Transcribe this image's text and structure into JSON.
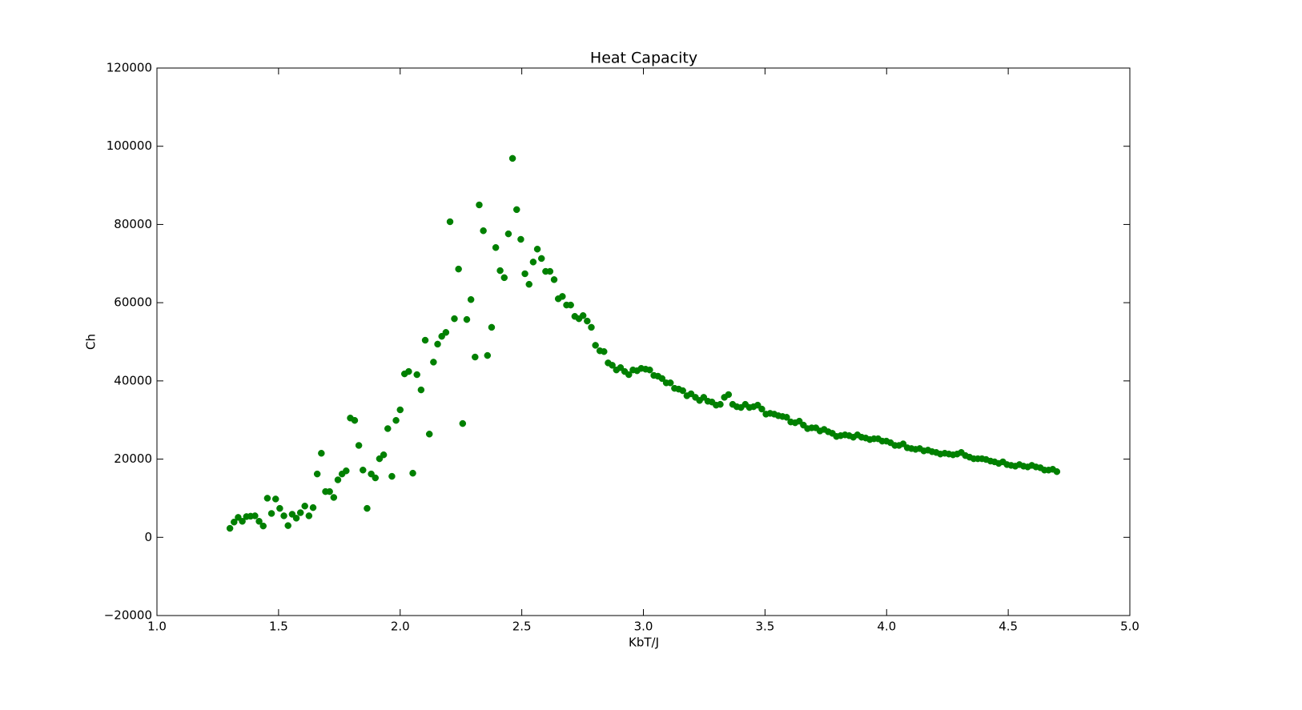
{
  "chart_data": {
    "type": "scatter",
    "title": "Heat Capacity",
    "x_label": "KbT/J",
    "y_label": "Ch",
    "color": "#008000",
    "x": [
      1.3,
      1.317,
      1.334,
      1.351,
      1.368,
      1.385,
      1.403,
      1.42,
      1.437,
      1.454,
      1.471,
      1.488,
      1.505,
      1.522,
      1.539,
      1.556,
      1.573,
      1.59,
      1.608,
      1.625,
      1.642,
      1.659,
      1.676,
      1.693,
      1.71,
      1.727,
      1.744,
      1.761,
      1.778,
      1.795,
      1.813,
      1.83,
      1.847,
      1.864,
      1.881,
      1.898,
      1.915,
      1.932,
      1.949,
      1.966,
      1.983,
      2.0,
      2.018,
      2.035,
      2.052,
      2.069,
      2.086,
      2.103,
      2.12,
      2.137,
      2.154,
      2.171,
      2.188,
      2.205,
      2.223,
      2.24,
      2.257,
      2.274,
      2.291,
      2.308,
      2.325,
      2.342,
      2.359,
      2.376,
      2.393,
      2.411,
      2.428,
      2.445,
      2.462,
      2.479,
      2.496,
      2.513,
      2.53,
      2.547,
      2.564,
      2.581,
      2.598,
      2.616,
      2.633,
      2.65,
      2.667,
      2.684,
      2.701,
      2.718,
      2.735,
      2.752,
      2.769,
      2.786,
      2.803,
      2.821,
      2.838,
      2.855,
      2.872,
      2.889,
      2.906,
      2.923,
      2.94,
      2.957,
      2.974,
      2.991,
      3.009,
      3.026,
      3.043,
      3.06,
      3.077,
      3.094,
      3.111,
      3.128,
      3.145,
      3.162,
      3.179,
      3.196,
      3.214,
      3.231,
      3.248,
      3.265,
      3.282,
      3.299,
      3.316,
      3.333,
      3.35,
      3.367,
      3.384,
      3.401,
      3.419,
      3.436,
      3.453,
      3.47,
      3.487,
      3.504,
      3.521,
      3.538,
      3.555,
      3.572,
      3.589,
      3.606,
      3.624,
      3.641,
      3.658,
      3.675,
      3.692,
      3.709,
      3.726,
      3.743,
      3.76,
      3.777,
      3.794,
      3.811,
      3.829,
      3.846,
      3.863,
      3.88,
      3.897,
      3.914,
      3.931,
      3.948,
      3.965,
      3.982,
      3.999,
      4.016,
      4.034,
      4.051,
      4.068,
      4.085,
      4.102,
      4.119,
      4.136,
      4.153,
      4.17,
      4.187,
      4.204,
      4.221,
      4.239,
      4.256,
      4.273,
      4.29,
      4.307,
      4.324,
      4.341,
      4.358,
      4.375,
      4.392,
      4.409,
      4.427,
      4.444,
      4.461,
      4.478,
      4.495,
      4.512,
      4.529,
      4.546,
      4.563,
      4.58,
      4.597,
      4.614,
      4.632,
      4.649,
      4.666,
      4.683,
      4.7
    ],
    "values": [
      2300,
      3900,
      5100,
      4100,
      5300,
      5400,
      5500,
      4100,
      2900,
      10000,
      6100,
      9800,
      7400,
      5500,
      3000,
      5900,
      4900,
      6300,
      8000,
      5500,
      7600,
      16200,
      21500,
      11700,
      11700,
      10200,
      14700,
      16200,
      17000,
      30500,
      29900,
      23500,
      17200,
      7400,
      16200,
      15200,
      20100,
      21100,
      27800,
      15600,
      29900,
      32600,
      41800,
      42400,
      16400,
      41600,
      37700,
      50400,
      26400,
      44800,
      49400,
      51400,
      52400,
      80700,
      55900,
      68600,
      29100,
      55700,
      60800,
      46100,
      85000,
      78400,
      46500,
      53700,
      74100,
      68200,
      66400,
      77600,
      96900,
      83800,
      76200,
      67400,
      64700,
      70400,
      73700,
      71300,
      68000,
      68000,
      65900,
      61000,
      61600,
      59400,
      59400,
      56500,
      55900,
      56700,
      55300,
      53700,
      49100,
      47700,
      47500,
      44600,
      44000,
      42800,
      43400,
      42400,
      41600,
      42800,
      42600,
      43200,
      43000,
      42800,
      41400,
      41200,
      40600,
      39500,
      39500,
      38100,
      37900,
      37500,
      36200,
      36700,
      35800,
      35000,
      35800,
      34800,
      34600,
      33800,
      34000,
      35800,
      36500,
      34000,
      33400,
      33200,
      34000,
      33200,
      33400,
      33800,
      32800,
      31500,
      31700,
      31500,
      31100,
      30900,
      30700,
      29500,
      29300,
      29700,
      28700,
      27800,
      28000,
      28000,
      27200,
      27600,
      27000,
      26600,
      25800,
      26000,
      26200,
      26000,
      25600,
      26200,
      25600,
      25400,
      25000,
      25200,
      25200,
      24600,
      24600,
      24200,
      23500,
      23500,
      23900,
      22900,
      22700,
      22500,
      22700,
      22100,
      22300,
      21900,
      21700,
      21300,
      21500,
      21300,
      21100,
      21300,
      21700,
      20900,
      20500,
      20100,
      20100,
      20100,
      19900,
      19500,
      19300,
      18900,
      19300,
      18600,
      18400,
      18200,
      18600,
      18200,
      18000,
      18400,
      18000,
      17800,
      17200,
      17200,
      17400,
      16800
    ],
    "xlim": [
      1.0,
      5.0
    ],
    "xticks": [
      {
        "value": 1.0,
        "label": "1.0"
      },
      {
        "value": 1.5,
        "label": "1.5"
      },
      {
        "value": 2.0,
        "label": "2.0"
      },
      {
        "value": 2.5,
        "label": "2.5"
      },
      {
        "value": 3.0,
        "label": "3.0"
      },
      {
        "value": 3.5,
        "label": "3.5"
      },
      {
        "value": 4.0,
        "label": "4.0"
      },
      {
        "value": 4.5,
        "label": "4.5"
      },
      {
        "value": 5.0,
        "label": "5.0"
      }
    ],
    "ylim": [
      -20000,
      120000
    ],
    "yticks": [
      {
        "value": -20000,
        "label": "−20000"
      },
      0,
      20000,
      40000,
      60000,
      80000,
      100000,
      120000
    ],
    "grid": false
  }
}
